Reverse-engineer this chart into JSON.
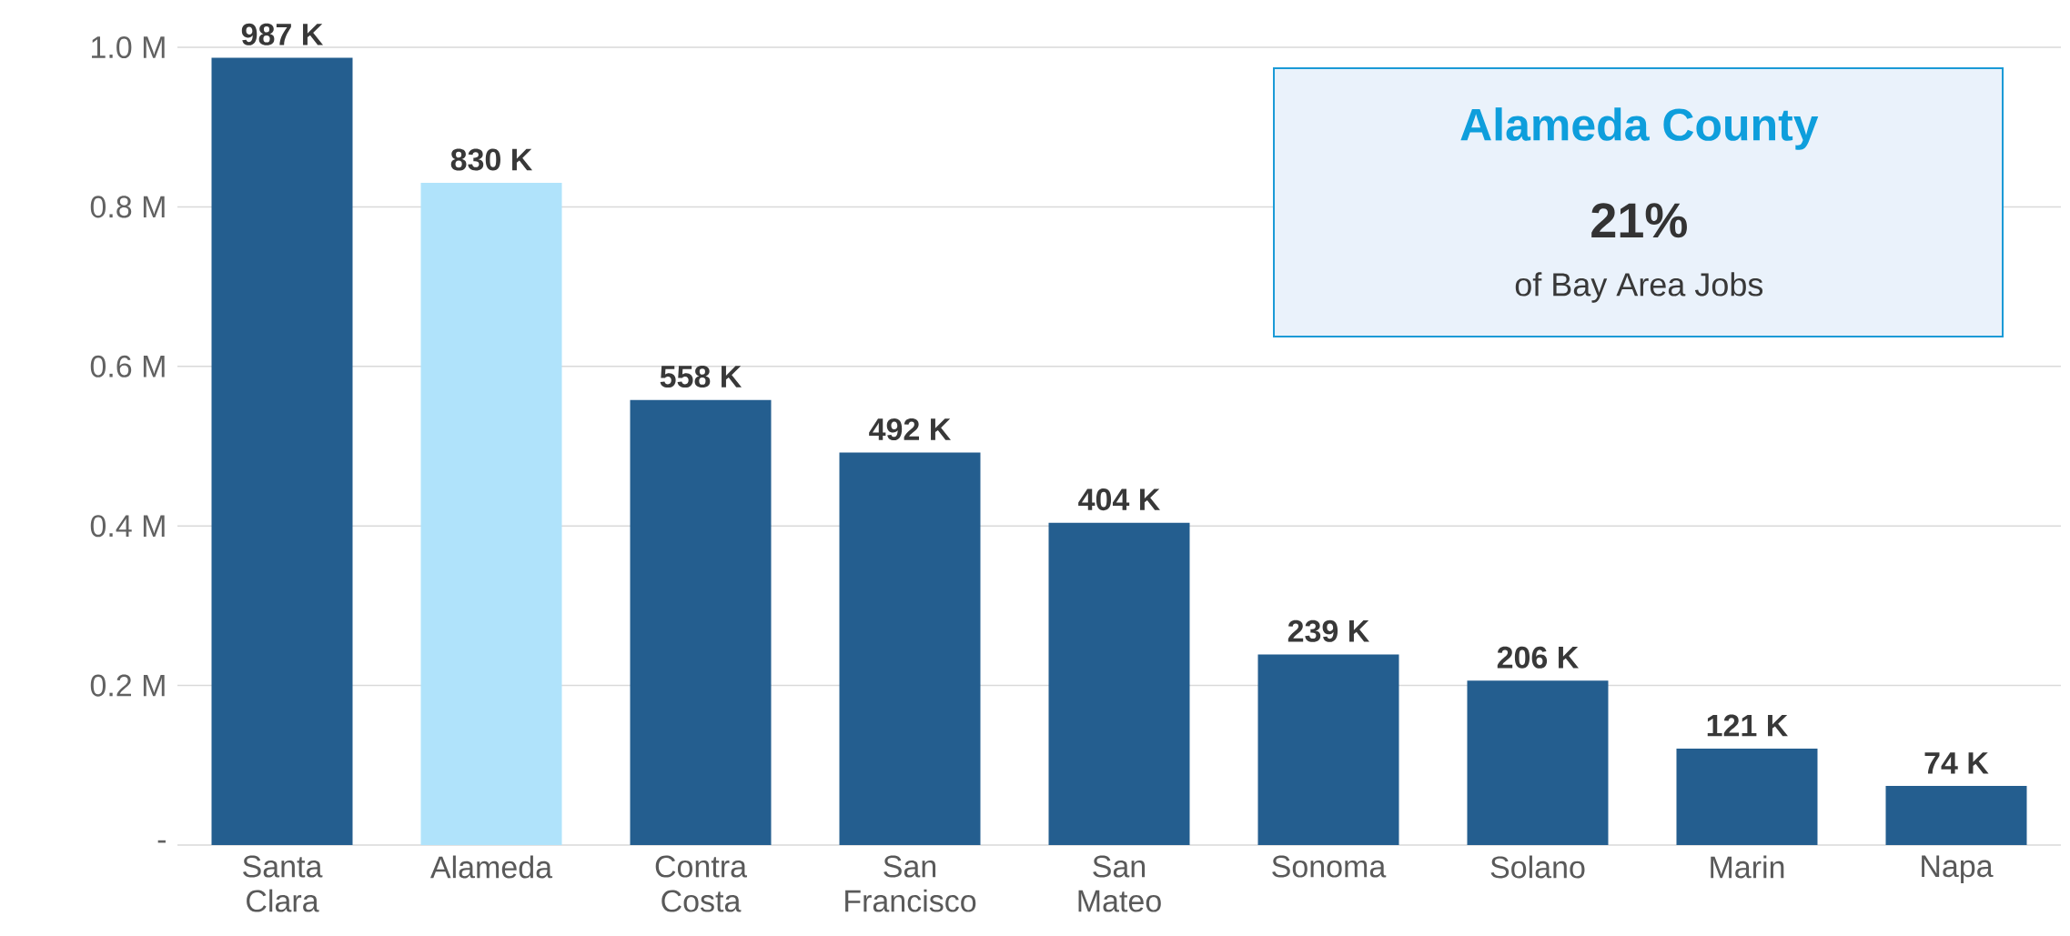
{
  "chart_data": {
    "type": "bar",
    "categories": [
      "Santa Clara",
      "Alameda",
      "Contra Costa",
      "San Francisco",
      "San Mateo",
      "Sonoma",
      "Solano",
      "Marin",
      "Napa"
    ],
    "values": [
      0.987,
      0.83,
      0.558,
      0.492,
      0.404,
      0.239,
      0.206,
      0.121,
      0.074
    ],
    "value_labels": [
      "987 K",
      "830 K",
      "558 K",
      "492 K",
      "404 K",
      "239 K",
      "206 K",
      "121 K",
      "74 K"
    ],
    "colors": [
      "#245e8f",
      "#b0e3fb",
      "#245e8f",
      "#245e8f",
      "#245e8f",
      "#245e8f",
      "#245e8f",
      "#245e8f",
      "#245e8f"
    ],
    "ylim": [
      0,
      1.0
    ],
    "yticks": [
      {
        "value": 0,
        "label": "-"
      },
      {
        "value": 0.2,
        "label": "0.2 M"
      },
      {
        "value": 0.4,
        "label": "0.4 M"
      },
      {
        "value": 0.6,
        "label": "0.6 M"
      },
      {
        "value": 0.8,
        "label": "0.8 M"
      },
      {
        "value": 1.0,
        "label": "1.0 M"
      }
    ],
    "grid": "y",
    "annotations": [
      "Alameda County",
      "21%",
      "of Bay Area Jobs"
    ]
  }
}
